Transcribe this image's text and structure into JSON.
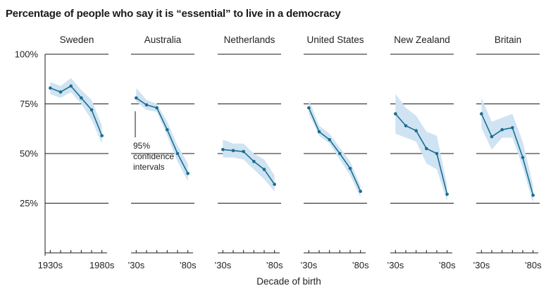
{
  "chart_data": {
    "type": "line",
    "title": "Percentage of people who say it is “essential” to live in a democracy",
    "xlabel": "Decade of birth",
    "ylabel": "",
    "ylim": [
      0,
      100
    ],
    "y_ticks": [
      {
        "value": 100,
        "label": "100%"
      },
      {
        "value": 75,
        "label": "75%"
      },
      {
        "value": 50,
        "label": "50%"
      },
      {
        "value": 25,
        "label": "25%"
      }
    ],
    "x": [
      1930,
      1940,
      1950,
      1960,
      1970,
      1980
    ],
    "xlim": [
      1925,
      1985
    ],
    "grid": true,
    "line_color": "#1a6e8e",
    "band_color": "#cfe3f3",
    "panels": [
      {
        "name": "Sweden",
        "x_tick_labels": [
          "1930s",
          "1980s"
        ],
        "values": [
          83,
          81,
          84,
          78,
          72,
          59
        ],
        "ci_low": [
          80,
          78,
          81,
          75,
          67,
          55
        ],
        "ci_high": [
          86,
          84,
          88,
          82,
          77,
          64
        ]
      },
      {
        "name": "Australia",
        "x_tick_labels": [
          "’30s",
          "’80s"
        ],
        "values": [
          78,
          74.5,
          73,
          62,
          50,
          40
        ],
        "ci_low": [
          76,
          72,
          71,
          59,
          46,
          36
        ],
        "ci_high": [
          83,
          77,
          75,
          66,
          54,
          45
        ]
      },
      {
        "name": "Netherlands",
        "x_tick_labels": [
          "’30s",
          "’80s"
        ],
        "values": [
          52,
          51.5,
          51,
          46,
          42,
          34.5
        ],
        "ci_low": [
          48,
          48,
          47,
          42,
          37,
          31
        ],
        "ci_high": [
          57,
          55,
          55,
          50,
          47,
          39
        ]
      },
      {
        "name": "United States",
        "x_tick_labels": [
          "’30s",
          "’80s"
        ],
        "values": [
          73,
          61,
          57,
          50,
          42.5,
          31
        ],
        "ci_low": [
          70,
          59,
          55,
          47,
          39,
          28
        ],
        "ci_high": [
          77,
          64,
          60,
          53,
          46,
          34
        ]
      },
      {
        "name": "New Zealand",
        "x_tick_labels": [
          "’30s",
          "’80s"
        ],
        "values": [
          70,
          64,
          61.5,
          52.5,
          50,
          29.5
        ],
        "ci_low": [
          60,
          58,
          56,
          45,
          42,
          26
        ],
        "ci_high": [
          80,
          73,
          69,
          61,
          59,
          34
        ]
      },
      {
        "name": "Britain",
        "x_tick_labels": [
          "’30s",
          "’80s"
        ],
        "values": [
          70,
          58.5,
          62,
          63,
          48,
          29
        ],
        "ci_low": [
          63,
          52,
          58,
          58,
          43,
          25
        ],
        "ci_high": [
          78,
          66,
          68,
          70,
          56,
          34
        ]
      }
    ],
    "annotation": {
      "panel": 1,
      "lines": [
        "95%",
        "confidence",
        "intervals"
      ]
    }
  }
}
